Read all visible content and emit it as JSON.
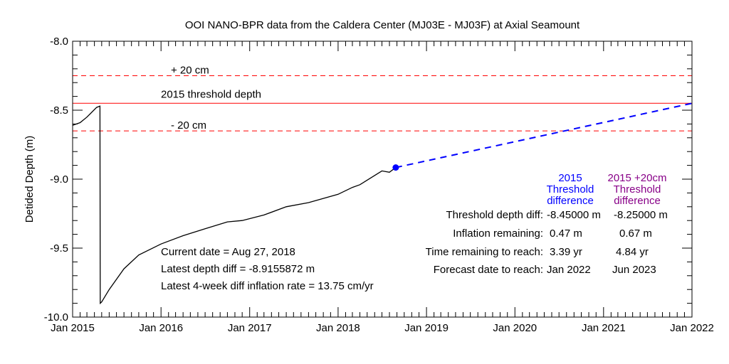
{
  "chart_data": {
    "type": "line",
    "title": "OOI NANO-BPR data from the Caldera Center (MJ03E - MJ03F) at Axial Seamount",
    "xlabel": "",
    "ylabel": "Detided Depth (m)",
    "xlim": [
      "2015-01-01",
      "2022-01-01"
    ],
    "ylim": [
      -10.0,
      -8.0
    ],
    "x_ticks": [
      "Jan 2015",
      "Jan 2016",
      "Jan 2017",
      "Jan 2018",
      "Jan 2019",
      "Jan 2020",
      "Jan 2021",
      "Jan 2022"
    ],
    "y_ticks": [
      "-8.0",
      "-8.5",
      "-9.0",
      "-9.5",
      "-10.0"
    ],
    "series": [
      {
        "color": "#000000",
        "style": "solid",
        "points": [
          {
            "x": "2015-01-01",
            "y": -8.61
          },
          {
            "x": "2015-02-01",
            "y": -8.59
          },
          {
            "x": "2015-03-01",
            "y": -8.55
          },
          {
            "x": "2015-04-10",
            "y": -8.48
          },
          {
            "x": "2015-04-24",
            "y": -8.47
          },
          {
            "x": "2015-04-25",
            "y": -9.9
          },
          {
            "x": "2015-05-01",
            "y": -9.89
          },
          {
            "x": "2015-06-01",
            "y": -9.8
          },
          {
            "x": "2015-08-01",
            "y": -9.65
          },
          {
            "x": "2015-10-01",
            "y": -9.55
          },
          {
            "x": "2016-01-01",
            "y": -9.47
          },
          {
            "x": "2016-04-01",
            "y": -9.41
          },
          {
            "x": "2016-07-01",
            "y": -9.36
          },
          {
            "x": "2016-10-01",
            "y": -9.31
          },
          {
            "x": "2016-12-01",
            "y": -9.3
          },
          {
            "x": "2017-03-01",
            "y": -9.26
          },
          {
            "x": "2017-06-01",
            "y": -9.2
          },
          {
            "x": "2017-09-01",
            "y": -9.17
          },
          {
            "x": "2018-01-01",
            "y": -9.11
          },
          {
            "x": "2018-03-01",
            "y": -9.06
          },
          {
            "x": "2018-04-01",
            "y": -9.04
          },
          {
            "x": "2018-07-01",
            "y": -8.94
          },
          {
            "x": "2018-08-01",
            "y": -8.95
          },
          {
            "x": "2018-08-27",
            "y": -8.9155872
          }
        ]
      },
      {
        "color": "#0000ff",
        "style": "dashed",
        "points": [
          {
            "x": "2018-08-27",
            "y": -8.9155872
          },
          {
            "x": "2022-01-01",
            "y": -8.45
          }
        ]
      }
    ],
    "current_marker": {
      "x": "2018-08-27",
      "y": -8.9155872,
      "color": "#0000ff"
    },
    "reference_lines": [
      {
        "y": -8.25,
        "color": "#ff0000",
        "style": "dashed",
        "label": "+ 20 cm"
      },
      {
        "y": -8.45,
        "color": "#ff0000",
        "style": "solid",
        "label": "2015 threshold depth"
      },
      {
        "y": -8.65,
        "color": "#ff0000",
        "style": "dashed",
        "label": "- 20 cm"
      }
    ],
    "info_left": [
      "Current date = Aug 27, 2018",
      "Latest depth diff = -8.9155872 m",
      "Latest 4-week diff inflation rate =  13.75 cm/yr"
    ],
    "table": {
      "col1_header": [
        "2015",
        "Threshold",
        "difference"
      ],
      "col2_header": [
        "2015 +20cm",
        "Threshold",
        "difference"
      ],
      "rows": [
        {
          "label": "Threshold depth diff:",
          "v1": "-8.45000 m",
          "v2": "-8.25000 m"
        },
        {
          "label": "Inflation  remaining:",
          "v1": "0.47 m",
          "v2": "0.67 m"
        },
        {
          "label": "Time remaining to reach:",
          "v1": "3.39 yr",
          "v2": "4.84 yr"
        },
        {
          "label": "Forecast  date to reach:",
          "v1": "Jan 2022",
          "v2": "Jun 2023"
        }
      ],
      "col1_color": "#0000ff",
      "col2_color": "#880088"
    }
  }
}
